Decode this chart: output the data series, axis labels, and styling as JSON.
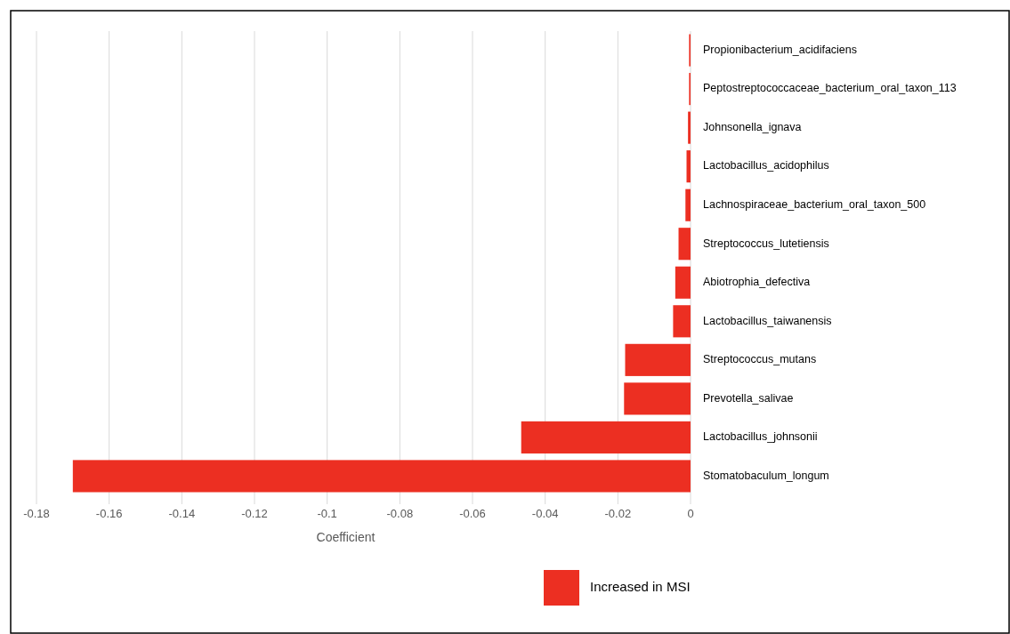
{
  "chart_data": {
    "type": "bar",
    "orientation": "horizontal",
    "xlabel": "Coefficient",
    "categories": [
      "Propionibacterium_acidifaciens",
      "Peptostreptococcaceae_bacterium_oral_taxon_113",
      "Johnsonella_ignava",
      "Lactobacillus_acidophilus",
      "Lachnospiraceae_bacterium_oral_taxon_500",
      "Streptococcus_lutetiensis",
      "Abiotrophia_defectiva",
      "Lactobacillus_taiwanensis",
      "Streptococcus_mutans",
      "Prevotella_salivae",
      "Lactobacillus_johnsonii",
      "Stomatobaculum_longum"
    ],
    "series": [
      {
        "name": "Increased in MSI",
        "color": "#ec2f22",
        "values": [
          -0.0004,
          -0.0004,
          -0.0007,
          -0.0011,
          -0.0014,
          -0.0033,
          -0.0042,
          -0.0048,
          -0.018,
          -0.0183,
          -0.0466,
          -0.17
        ]
      }
    ],
    "xlim": [
      -0.18,
      0
    ],
    "xticks": [
      -0.18,
      -0.16,
      -0.14,
      -0.12,
      -0.1,
      -0.08,
      -0.06,
      -0.04,
      -0.02,
      0
    ],
    "grid": "x",
    "legend": "bottom"
  }
}
